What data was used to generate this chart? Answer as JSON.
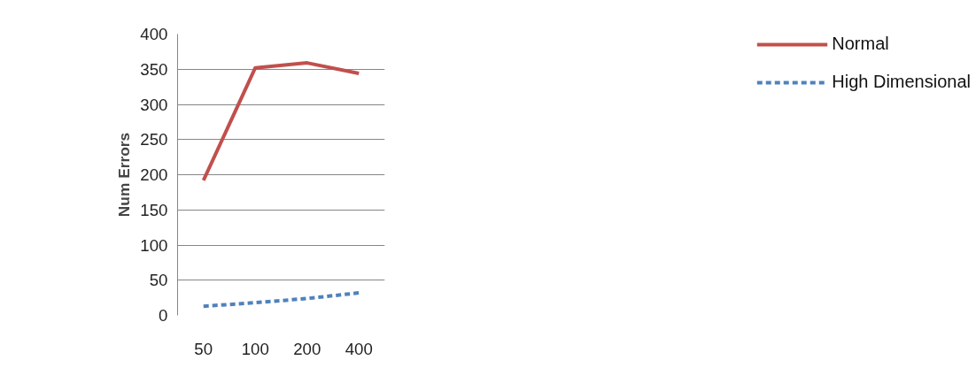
{
  "chart_data": {
    "type": "line",
    "ylabel": "Num Errors",
    "categories": [
      "50",
      "100",
      "200",
      "400"
    ],
    "series": [
      {
        "name": "Normal",
        "color": "#c0504d",
        "line_style": "solid",
        "values": [
          192,
          352,
          359,
          344
        ]
      },
      {
        "name": "High Dimensional",
        "color": "#4f81bd",
        "line_style": "dashed",
        "values": [
          13,
          18,
          24,
          32
        ]
      }
    ],
    "ylim": [
      0,
      400
    ],
    "yticks": [
      0,
      50,
      100,
      150,
      200,
      250,
      300,
      350,
      400
    ],
    "grid": "y",
    "legend": "right",
    "marker": "none"
  }
}
